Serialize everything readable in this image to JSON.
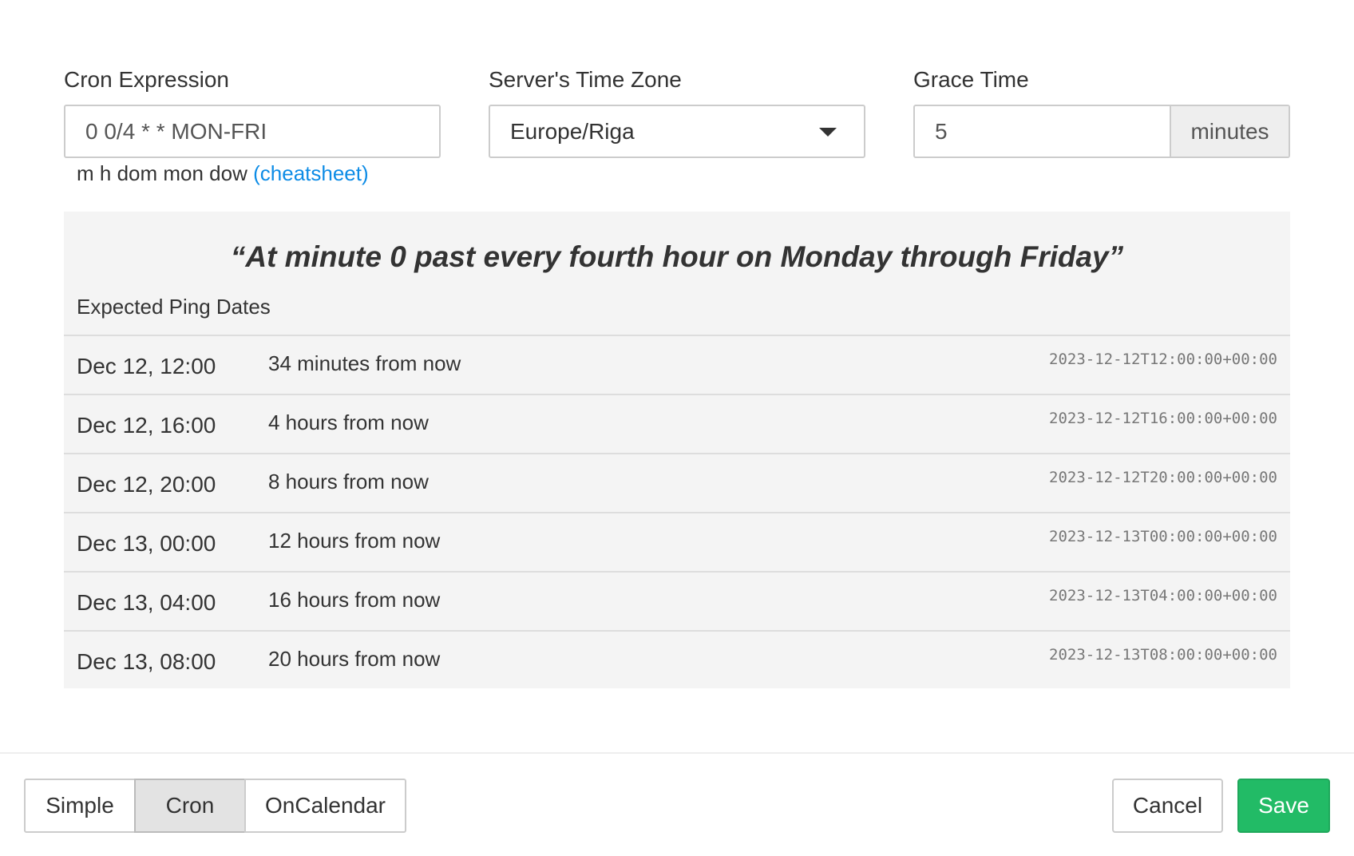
{
  "cron": {
    "label": "Cron Expression",
    "value": "0 0/4 * * MON-FRI",
    "hint": "m h dom mon dow",
    "cheatsheet": "(cheatsheet)"
  },
  "timezone": {
    "label": "Server's Time Zone",
    "value": "Europe/Riga"
  },
  "grace": {
    "label": "Grace Time",
    "value": "5",
    "unit": "minutes"
  },
  "description": "“At minute 0 past every fourth hour on Monday through Friday”",
  "pings_title": "Expected Ping Dates",
  "pings": [
    {
      "date": "Dec 12, 12:00",
      "relative": "34 minutes from now",
      "iso": "2023-12-12T12:00:00+00:00"
    },
    {
      "date": "Dec 12, 16:00",
      "relative": "4 hours from now",
      "iso": "2023-12-12T16:00:00+00:00"
    },
    {
      "date": "Dec 12, 20:00",
      "relative": "8 hours from now",
      "iso": "2023-12-12T20:00:00+00:00"
    },
    {
      "date": "Dec 13, 00:00",
      "relative": "12 hours from now",
      "iso": "2023-12-13T00:00:00+00:00"
    },
    {
      "date": "Dec 13, 04:00",
      "relative": "16 hours from now",
      "iso": "2023-12-13T04:00:00+00:00"
    },
    {
      "date": "Dec 13, 08:00",
      "relative": "20 hours from now",
      "iso": "2023-12-13T08:00:00+00:00"
    }
  ],
  "modes": {
    "simple": "Simple",
    "cron": "Cron",
    "oncalendar": "OnCalendar",
    "active": "Cron"
  },
  "actions": {
    "cancel": "Cancel",
    "save": "Save"
  },
  "colors": {
    "save": "#22bb66",
    "link": "#0d8ce6"
  }
}
